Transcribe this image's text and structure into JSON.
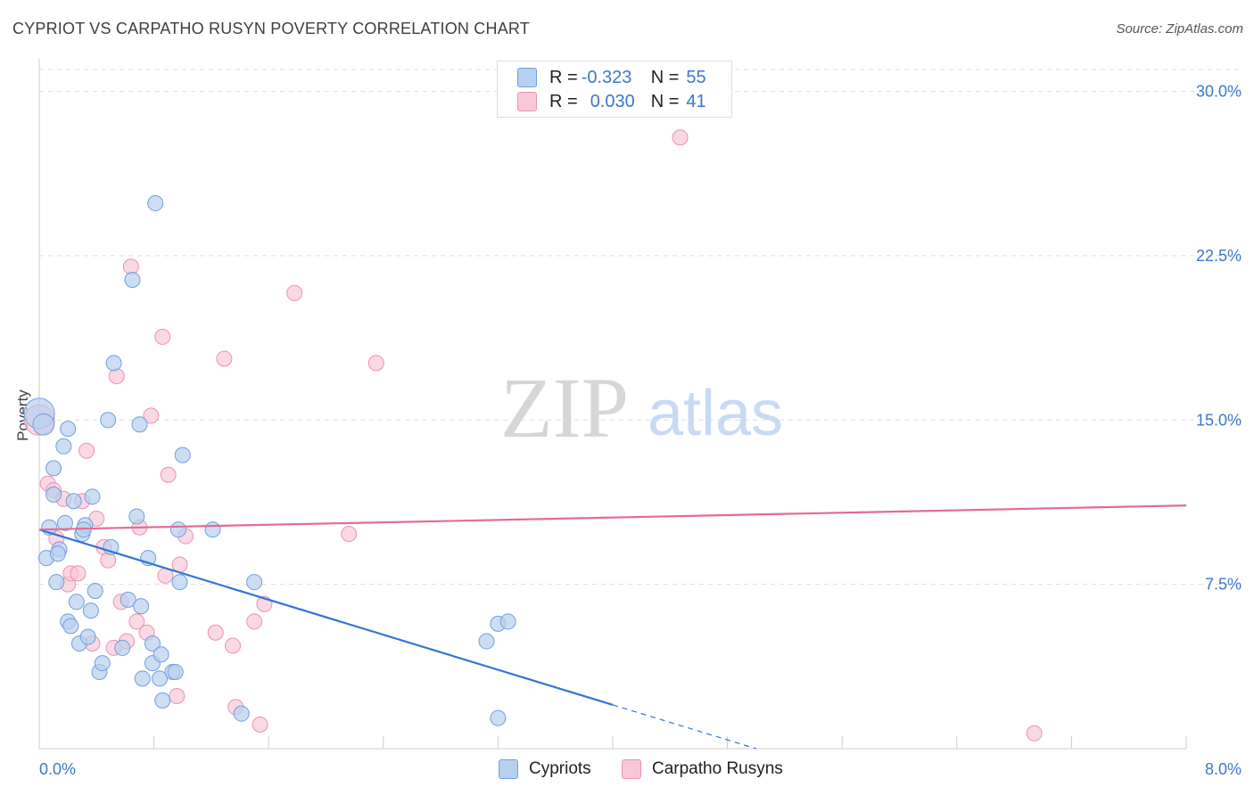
{
  "header": {
    "title": "CYPRIOT VS CARPATHO RUSYN POVERTY CORRELATION CHART",
    "source": "Source: ZipAtlas.com"
  },
  "legend_top": {
    "rows": [
      {
        "r_label": "R =",
        "r_value": "-0.323",
        "n_label": "N =",
        "n_value": "55"
      },
      {
        "r_label": "R =",
        "r_value": "0.030",
        "n_label": "N =",
        "n_value": "41"
      }
    ]
  },
  "legend_bottom": {
    "items": [
      "Cypriots",
      "Carpatho Rusyns"
    ]
  },
  "colors": {
    "blue_fill": "#b8d0f0",
    "blue_stroke": "#6f9fdd",
    "blue_line": "#3375d6",
    "pink_fill": "#f8c8d8",
    "pink_stroke": "#ea94b0",
    "pink_line": "#e46b95",
    "tick_label": "#3d78c9",
    "grid": "#dddddd"
  },
  "watermark": {
    "part1": "ZIP",
    "part2": "atlas"
  },
  "chart_data": {
    "type": "scatter",
    "title": "CYPRIOT VS CARPATHO RUSYN POVERTY CORRELATION CHART",
    "xlabel": "",
    "ylabel": "Poverty",
    "xlim": [
      0,
      8.0
    ],
    "ylim": [
      0,
      31.0
    ],
    "x_tick_labels": [
      "0.0%",
      "8.0%"
    ],
    "y_ticks": [
      7.5,
      15.0,
      22.5,
      30.0
    ],
    "y_tick_labels": [
      "7.5%",
      "15.0%",
      "22.5%",
      "30.0%"
    ],
    "grid": true,
    "series": [
      {
        "name": "Cypriots",
        "r": -0.323,
        "n": 55,
        "trend": {
          "x0": 0.0,
          "y0": 10.0,
          "x1": 4.0,
          "y1": 2.0,
          "dash_to_x": 5.0,
          "dash_to_y": 0.0
        },
        "points": [
          [
            0.0,
            15.3,
            2
          ],
          [
            0.03,
            14.8,
            1.4
          ],
          [
            0.07,
            10.1,
            1
          ],
          [
            0.05,
            8.7,
            1
          ],
          [
            0.1,
            12.8,
            1
          ],
          [
            0.1,
            11.6,
            1
          ],
          [
            0.12,
            7.6,
            1
          ],
          [
            0.14,
            9.1,
            1
          ],
          [
            0.13,
            8.9,
            1
          ],
          [
            0.17,
            13.8,
            1
          ],
          [
            0.18,
            10.3,
            1
          ],
          [
            0.2,
            14.6,
            1
          ],
          [
            0.2,
            5.8,
            1
          ],
          [
            0.22,
            5.6,
            1
          ],
          [
            0.24,
            11.3,
            1
          ],
          [
            0.26,
            6.7,
            1
          ],
          [
            0.28,
            4.8,
            1
          ],
          [
            0.3,
            9.8,
            1
          ],
          [
            0.32,
            10.2,
            1
          ],
          [
            0.31,
            10.0,
            1
          ],
          [
            0.34,
            5.1,
            1
          ],
          [
            0.36,
            6.3,
            1
          ],
          [
            0.37,
            11.5,
            1
          ],
          [
            0.39,
            7.2,
            1
          ],
          [
            0.42,
            3.5,
            1
          ],
          [
            0.44,
            3.9,
            1
          ],
          [
            0.48,
            15.0,
            1
          ],
          [
            0.5,
            9.2,
            1
          ],
          [
            0.52,
            17.6,
            1
          ],
          [
            0.58,
            4.6,
            1
          ],
          [
            0.62,
            6.8,
            1
          ],
          [
            0.65,
            21.4,
            1
          ],
          [
            0.68,
            10.6,
            1
          ],
          [
            0.7,
            14.8,
            1
          ],
          [
            0.72,
            3.2,
            1
          ],
          [
            0.71,
            6.5,
            1
          ],
          [
            0.76,
            8.7,
            1
          ],
          [
            0.79,
            4.8,
            1
          ],
          [
            0.79,
            3.9,
            1
          ],
          [
            0.81,
            24.9,
            1
          ],
          [
            0.84,
            3.2,
            1
          ],
          [
            0.85,
            4.3,
            1
          ],
          [
            0.86,
            2.2,
            1
          ],
          [
            0.93,
            3.5,
            1
          ],
          [
            0.95,
            3.5,
            1
          ],
          [
            0.97,
            10.0,
            1
          ],
          [
            0.98,
            7.6,
            1
          ],
          [
            1.0,
            13.4,
            1
          ],
          [
            1.21,
            10.0,
            1
          ],
          [
            1.41,
            1.6,
            1
          ],
          [
            1.5,
            7.6,
            1
          ],
          [
            3.12,
            4.9,
            1
          ],
          [
            3.2,
            1.4,
            1
          ],
          [
            3.2,
            5.7,
            1
          ],
          [
            3.27,
            5.8,
            1
          ]
        ]
      },
      {
        "name": "Carpatho Rusyns",
        "r": 0.03,
        "n": 41,
        "trend": {
          "x0": 0.0,
          "y0": 10.0,
          "x1": 8.0,
          "y1": 11.1
        },
        "points": [
          [
            0.0,
            15.0,
            2
          ],
          [
            0.06,
            12.1,
            1
          ],
          [
            0.1,
            11.8,
            1
          ],
          [
            0.12,
            9.6,
            1
          ],
          [
            0.17,
            11.4,
            1
          ],
          [
            0.2,
            7.5,
            1
          ],
          [
            0.22,
            8.0,
            1
          ],
          [
            0.27,
            8.0,
            1
          ],
          [
            0.3,
            11.3,
            1
          ],
          [
            0.33,
            13.6,
            1
          ],
          [
            0.37,
            4.8,
            1
          ],
          [
            0.4,
            10.5,
            1
          ],
          [
            0.45,
            9.2,
            1
          ],
          [
            0.48,
            8.6,
            1
          ],
          [
            0.52,
            4.6,
            1
          ],
          [
            0.54,
            17.0,
            1
          ],
          [
            0.57,
            6.7,
            1
          ],
          [
            0.61,
            4.9,
            1
          ],
          [
            0.64,
            22.0,
            1
          ],
          [
            0.68,
            5.8,
            1
          ],
          [
            0.7,
            10.1,
            1
          ],
          [
            0.75,
            5.3,
            1
          ],
          [
            0.78,
            15.2,
            1
          ],
          [
            0.86,
            18.8,
            1
          ],
          [
            0.88,
            7.9,
            1
          ],
          [
            0.9,
            12.5,
            1
          ],
          [
            0.96,
            2.4,
            1
          ],
          [
            0.98,
            8.4,
            1
          ],
          [
            1.02,
            9.7,
            1
          ],
          [
            1.23,
            5.3,
            1
          ],
          [
            1.29,
            17.8,
            1
          ],
          [
            1.35,
            4.7,
            1
          ],
          [
            1.37,
            1.9,
            1
          ],
          [
            1.5,
            5.8,
            1
          ],
          [
            1.54,
            1.1,
            1
          ],
          [
            1.57,
            6.6,
            1
          ],
          [
            1.78,
            20.8,
            1
          ],
          [
            2.16,
            9.8,
            1
          ],
          [
            2.35,
            17.6,
            1
          ],
          [
            4.47,
            27.9,
            1
          ],
          [
            6.94,
            0.7,
            1
          ]
        ]
      }
    ]
  }
}
